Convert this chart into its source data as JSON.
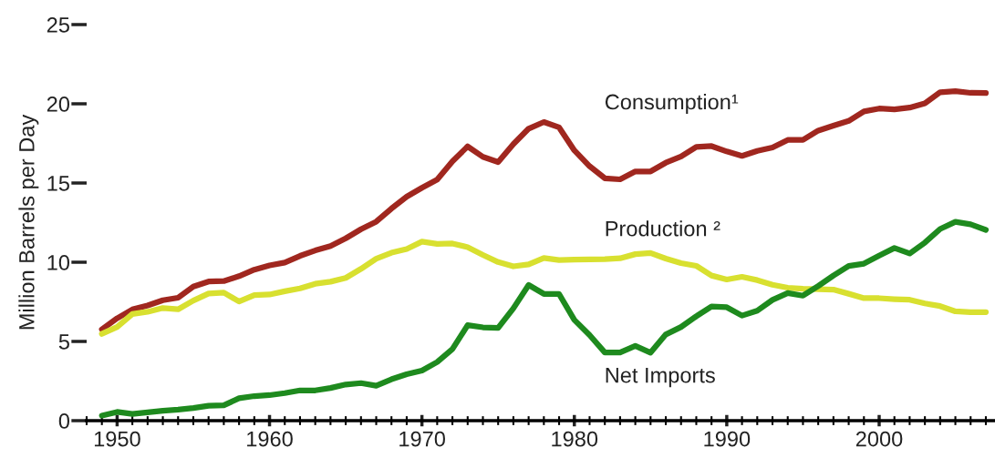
{
  "chart_data": {
    "type": "line",
    "ylabel": "Million Barrels per Day",
    "x": [
      1949,
      1950,
      1951,
      1952,
      1953,
      1954,
      1955,
      1956,
      1957,
      1958,
      1959,
      1960,
      1961,
      1962,
      1963,
      1964,
      1965,
      1966,
      1967,
      1968,
      1969,
      1970,
      1971,
      1972,
      1973,
      1974,
      1975,
      1976,
      1977,
      1978,
      1979,
      1980,
      1981,
      1982,
      1983,
      1984,
      1985,
      1986,
      1987,
      1988,
      1989,
      1990,
      1991,
      1992,
      1993,
      1994,
      1995,
      1996,
      1997,
      1998,
      1999,
      2000,
      2001,
      2002,
      2003,
      2004,
      2005,
      2006,
      2007
    ],
    "series": [
      {
        "name": "Consumption¹",
        "color": "#a0271f",
        "values": [
          5.76,
          6.46,
          7.02,
          7.27,
          7.6,
          7.76,
          8.46,
          8.78,
          8.81,
          9.12,
          9.53,
          9.8,
          9.98,
          10.4,
          10.74,
          11.02,
          11.51,
          12.08,
          12.56,
          13.39,
          14.14,
          14.7,
          15.21,
          16.37,
          17.31,
          16.65,
          16.32,
          17.46,
          18.43,
          18.85,
          18.51,
          17.06,
          16.06,
          15.3,
          15.23,
          15.73,
          15.73,
          16.28,
          16.67,
          17.28,
          17.33,
          16.99,
          16.71,
          17.03,
          17.24,
          17.72,
          17.72,
          18.31,
          18.62,
          18.92,
          19.52,
          19.7,
          19.65,
          19.76,
          20.03,
          20.73,
          20.8,
          20.69,
          20.68
        ]
      },
      {
        "name": "Production ²",
        "color": "#d8e030",
        "values": [
          5.48,
          5.91,
          6.73,
          6.87,
          7.11,
          7.03,
          7.58,
          8.02,
          8.08,
          7.52,
          7.93,
          7.96,
          8.17,
          8.35,
          8.64,
          8.77,
          9.01,
          9.58,
          10.22,
          10.6,
          10.83,
          11.3,
          11.16,
          11.18,
          10.95,
          10.46,
          10.01,
          9.74,
          9.86,
          10.27,
          10.14,
          10.17,
          10.18,
          10.2,
          10.25,
          10.51,
          10.58,
          10.23,
          9.94,
          9.77,
          9.16,
          8.91,
          9.08,
          8.87,
          8.58,
          8.39,
          8.32,
          8.3,
          8.27,
          8.01,
          7.73,
          7.73,
          7.67,
          7.63,
          7.4,
          7.23,
          6.9,
          6.84,
          6.85
        ]
      },
      {
        "name": "Net Imports",
        "color": "#1e8a1e",
        "values": [
          0.32,
          0.55,
          0.42,
          0.52,
          0.63,
          0.7,
          0.8,
          0.94,
          0.97,
          1.41,
          1.55,
          1.61,
          1.74,
          1.91,
          1.91,
          2.06,
          2.28,
          2.37,
          2.21,
          2.61,
          2.93,
          3.16,
          3.7,
          4.52,
          6.03,
          5.89,
          5.85,
          7.09,
          8.56,
          8.0,
          7.99,
          6.36,
          5.4,
          4.3,
          4.31,
          4.72,
          4.29,
          5.44,
          5.91,
          6.59,
          7.2,
          7.16,
          6.63,
          6.94,
          7.62,
          8.05,
          7.89,
          8.5,
          9.16,
          9.76,
          9.91,
          10.42,
          10.9,
          10.55,
          11.24,
          12.1,
          12.55,
          12.39,
          12.04
        ]
      }
    ],
    "xlim": [
      1948,
      2007.6
    ],
    "xticks": [
      1950,
      1960,
      1970,
      1980,
      1990,
      2000
    ],
    "ylim": [
      0,
      25
    ],
    "yticks": [
      0,
      5,
      10,
      15,
      20,
      25
    ],
    "grid": false,
    "legend": false,
    "marker": "none",
    "line_style": "solid"
  }
}
